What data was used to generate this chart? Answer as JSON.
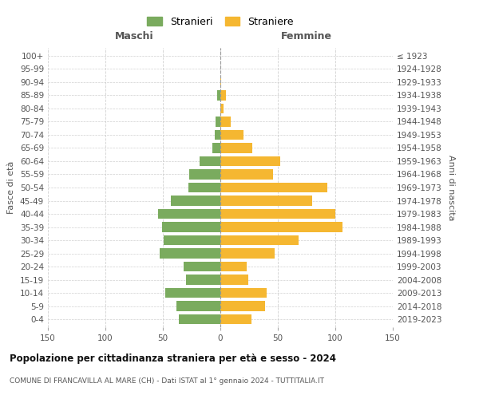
{
  "age_groups": [
    "0-4",
    "5-9",
    "10-14",
    "15-19",
    "20-24",
    "25-29",
    "30-34",
    "35-39",
    "40-44",
    "45-49",
    "50-54",
    "55-59",
    "60-64",
    "65-69",
    "70-74",
    "75-79",
    "80-84",
    "85-89",
    "90-94",
    "95-99",
    "100+"
  ],
  "birth_years": [
    "2019-2023",
    "2014-2018",
    "2009-2013",
    "2004-2008",
    "1999-2003",
    "1994-1998",
    "1989-1993",
    "1984-1988",
    "1979-1983",
    "1974-1978",
    "1969-1973",
    "1964-1968",
    "1959-1963",
    "1954-1958",
    "1949-1953",
    "1944-1948",
    "1939-1943",
    "1934-1938",
    "1929-1933",
    "1924-1928",
    "≤ 1923"
  ],
  "maschi": [
    36,
    38,
    48,
    30,
    32,
    53,
    49,
    51,
    54,
    43,
    28,
    27,
    18,
    7,
    5,
    4,
    0,
    3,
    0,
    0,
    0
  ],
  "femmine": [
    27,
    39,
    40,
    24,
    23,
    47,
    68,
    106,
    100,
    80,
    93,
    46,
    52,
    28,
    20,
    9,
    3,
    5,
    1,
    0,
    0
  ],
  "color_maschi": "#7aab5e",
  "color_femmine": "#f5b731",
  "title": "Popolazione per cittadinanza straniera per età e sesso - 2024",
  "subtitle": "COMUNE DI FRANCAVILLA AL MARE (CH) - Dati ISTAT al 1° gennaio 2024 - TUTTITALIA.IT",
  "legend_maschi": "Stranieri",
  "legend_femmine": "Straniere",
  "xlabel_left": "Maschi",
  "xlabel_right": "Femmine",
  "ylabel_left": "Fasce di età",
  "ylabel_right": "Anni di nascita",
  "xlim": 150,
  "bg_color": "#ffffff",
  "grid_color": "#cccccc"
}
